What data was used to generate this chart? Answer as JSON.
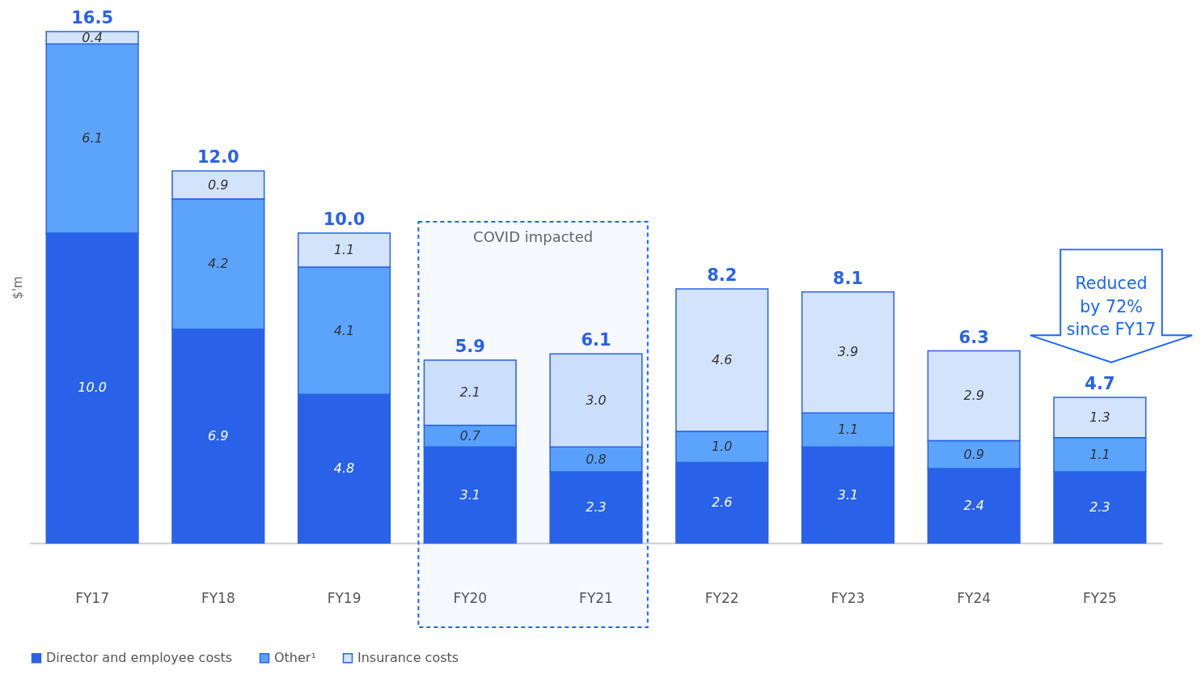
{
  "chart_data": {
    "type": "bar",
    "stacked": true,
    "ylabel": "$'m",
    "legend": "bottom",
    "categories": [
      "FY17",
      "FY18",
      "FY19",
      "FY20",
      "FY21",
      "FY22",
      "FY23",
      "FY24",
      "FY25"
    ],
    "series": [
      {
        "name": "Director and employee costs",
        "color": "#2962e8",
        "values": [
          10.0,
          6.9,
          4.8,
          3.1,
          2.3,
          2.6,
          3.1,
          2.4,
          2.3
        ],
        "value_labels": [
          "10.0",
          "6.9",
          "4.8",
          "3.1",
          "2.3",
          "2.6",
          "3.1",
          "2.4",
          "2.3"
        ]
      },
      {
        "name": "Other¹",
        "color": "#5ba3fb",
        "values": [
          6.1,
          4.2,
          4.1,
          0.7,
          0.8,
          1.0,
          1.1,
          0.9,
          1.1
        ],
        "value_labels": [
          "6.1",
          "4.2",
          "4.1",
          "0.7",
          "0.8",
          "1.0",
          "1.1",
          "0.9",
          "1.1"
        ]
      },
      {
        "name": "Insurance costs",
        "color": "#d3e3fb",
        "values": [
          0.4,
          0.9,
          1.1,
          2.1,
          3.0,
          4.6,
          3.9,
          2.9,
          1.3
        ],
        "value_labels": [
          "0.4",
          "0.9",
          "1.1",
          "2.1",
          "3.0",
          "4.6",
          "3.9",
          "2.9",
          "1.3"
        ]
      }
    ],
    "totals": [
      "16.5",
      "12.0",
      "10.0",
      "5.9",
      "6.1",
      "8.2",
      "8.1",
      "6.3",
      "4.7"
    ],
    "bands": [
      {
        "axis": "x",
        "from": "FY20",
        "to": "FY21",
        "label": "COVID impacted",
        "color": "#1a66ff"
      }
    ],
    "annotations": [
      "Reduced by 72% since FY17"
    ]
  }
}
